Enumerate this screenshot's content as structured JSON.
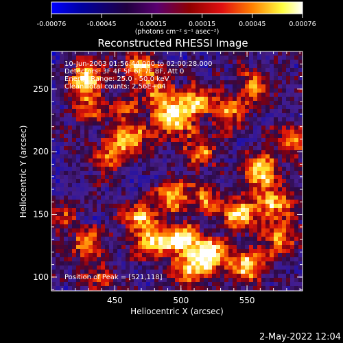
{
  "colorbar": {
    "ticks": [
      "-0.00076",
      "-0.00045",
      "-0.00015",
      "0.00015",
      "0.00045",
      "0.00076"
    ],
    "unit_label": "(photons cm⁻² s⁻¹ asec⁻²)",
    "range": [
      -0.00076,
      0.00076
    ],
    "colormap": [
      "#0000ff",
      "#000080",
      "#1a0033",
      "#400080",
      "#800000",
      "#e01010",
      "#ff8000",
      "#ffff40",
      "#ffffff"
    ]
  },
  "annotations": {
    "time_range": "10-Jun-2003 01:56:44.000 to 02:00:28.000",
    "detectors": "Detectors: 3F 4F 5F 6F 7F 8F, Att 0",
    "energy": "Energy Range: 25.0 - 50.0 keV",
    "clean": "Clean     Total counts: 2.56E+04",
    "peak": "Position of Peak = [521,118]"
  },
  "footer": {
    "timestamp": "2-May-2022 12:04"
  },
  "chart_data": {
    "type": "heatmap",
    "title": "Reconstructed RHESSI Image",
    "xlabel": "Heliocentric X (arcsec)",
    "ylabel": "Heliocentric Y (arcsec)",
    "xlim": [
      402,
      592
    ],
    "ylim": [
      89,
      280
    ],
    "xticks": [
      {
        "value": 450,
        "label": "450"
      },
      {
        "value": 500,
        "label": "500"
      },
      {
        "value": 550,
        "label": "550"
      }
    ],
    "yticks": [
      {
        "value": 100,
        "label": "100"
      },
      {
        "value": 150,
        "label": "150"
      },
      {
        "value": 200,
        "label": "200"
      },
      {
        "value": 250,
        "label": "250"
      }
    ],
    "peak_position": [
      521,
      118
    ],
    "blobs": [
      {
        "x": 428,
        "y": 258,
        "v": 0.85
      },
      {
        "x": 430,
        "y": 235,
        "v": 0.55
      },
      {
        "x": 470,
        "y": 268,
        "v": 0.7
      },
      {
        "x": 482,
        "y": 245,
        "v": 0.6
      },
      {
        "x": 495,
        "y": 225,
        "v": 0.95
      },
      {
        "x": 510,
        "y": 240,
        "v": 0.7
      },
      {
        "x": 535,
        "y": 232,
        "v": 0.55
      },
      {
        "x": 555,
        "y": 252,
        "v": 0.65
      },
      {
        "x": 462,
        "y": 210,
        "v": 0.7
      },
      {
        "x": 445,
        "y": 195,
        "v": 0.5
      },
      {
        "x": 515,
        "y": 200,
        "v": 0.6
      },
      {
        "x": 560,
        "y": 185,
        "v": 0.9
      },
      {
        "x": 572,
        "y": 160,
        "v": 0.8
      },
      {
        "x": 545,
        "y": 150,
        "v": 0.85
      },
      {
        "x": 520,
        "y": 160,
        "v": 0.55
      },
      {
        "x": 495,
        "y": 165,
        "v": 0.75
      },
      {
        "x": 470,
        "y": 150,
        "v": 0.7
      },
      {
        "x": 478,
        "y": 128,
        "v": 0.75
      },
      {
        "x": 500,
        "y": 130,
        "v": 0.95
      },
      {
        "x": 522,
        "y": 118,
        "v": 1.0
      },
      {
        "x": 505,
        "y": 105,
        "v": 0.8
      },
      {
        "x": 550,
        "y": 108,
        "v": 0.9
      },
      {
        "x": 575,
        "y": 130,
        "v": 0.7
      },
      {
        "x": 430,
        "y": 125,
        "v": 0.6
      },
      {
        "x": 440,
        "y": 100,
        "v": 0.45
      },
      {
        "x": 410,
        "y": 150,
        "v": 0.4
      },
      {
        "x": 585,
        "y": 210,
        "v": 0.55
      },
      {
        "x": 455,
        "y": 232,
        "v": 0.45
      }
    ]
  }
}
